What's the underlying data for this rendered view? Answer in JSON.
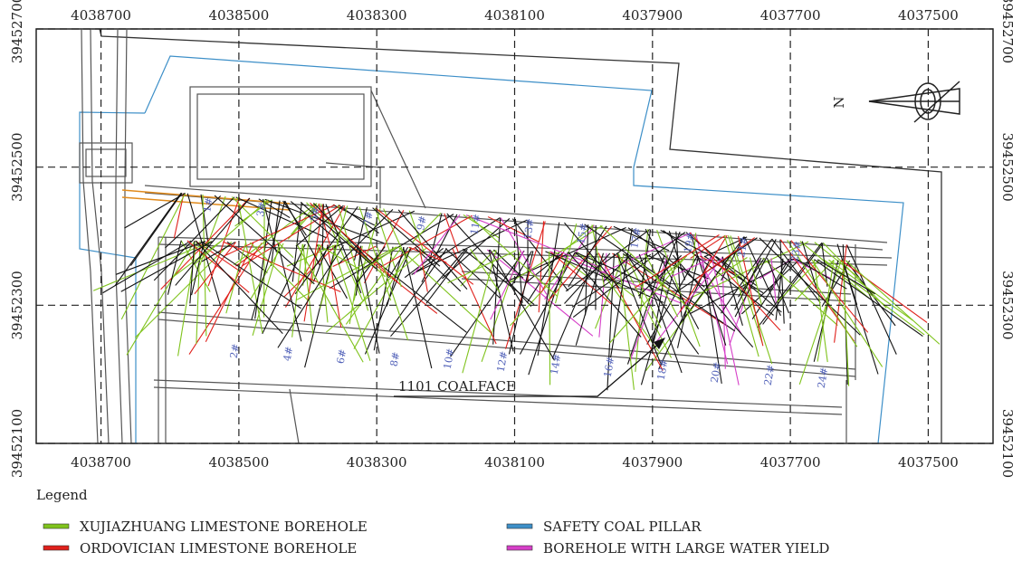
{
  "map": {
    "xticks": [
      4038700,
      4038500,
      4038300,
      4038100,
      4037900,
      4037700,
      4037500
    ],
    "yticks": [
      39452700,
      39452500,
      39452300,
      39452100
    ],
    "xlim": [
      4038794,
      4037406
    ],
    "ylim": [
      39452700,
      39452100
    ],
    "north": "N",
    "coalface_label": "1101 COALFACE",
    "borehole_labels": [
      "1#",
      "2#",
      "3#",
      "4#",
      "5#",
      "6#",
      "7#",
      "8#",
      "9#",
      "10#",
      "11#",
      "12#",
      "13#",
      "14#",
      "15#",
      "16#",
      "17#",
      "18#",
      "19#",
      "20#",
      "21#",
      "22#",
      "23#",
      "24#"
    ],
    "legend": {
      "title": "Legend",
      "items": [
        {
          "name": "XUJIAZHUANG LIMESTONE BOREHOLE",
          "color": "#7fc31c"
        },
        {
          "name": "ORDOVICIAN LIMESTONE BOREHOLE",
          "color": "#e0201b"
        },
        {
          "name": "SAFETY COAL PILLAR",
          "color": "#3d8fc8"
        },
        {
          "name": "BOREHOLE WITH LARGE WATER YIELD",
          "color": "#d63fc8"
        }
      ]
    }
  }
}
